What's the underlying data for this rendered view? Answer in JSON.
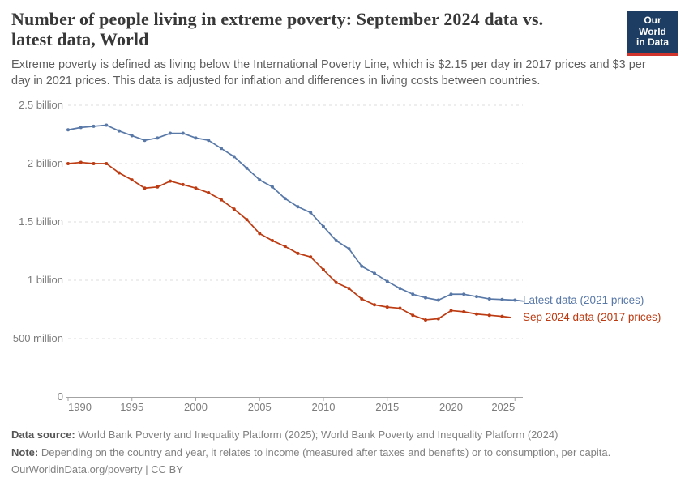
{
  "header": {
    "title_lines": [
      "Number of people living in extreme poverty: September 2024 data vs.",
      "latest data, World"
    ],
    "subtitle_lines": [
      "Extreme poverty is defined as living below the International Poverty Line, which is $2.15 per day in 2017 prices and $3 per",
      "day in 2021 prices. This data is adjusted for inflation and differences in living costs between countries."
    ]
  },
  "logo": {
    "line1": "Our World",
    "line2": "in Data",
    "bg_color": "#1d3d63",
    "bar_color": "#d0342c"
  },
  "chart_data": {
    "type": "line",
    "title": "Number of people living in extreme poverty: September 2024 data vs. latest data, World",
    "unit": "people",
    "value_scale": "billions",
    "xlim": [
      1990,
      2025
    ],
    "ylim": [
      0,
      2.5
    ],
    "grid": "horizontal dashed",
    "legend_position": "right of line ends",
    "xticks": [
      1990,
      1995,
      2000,
      2005,
      2010,
      2015,
      2020,
      2025
    ],
    "yticks": [
      {
        "value": 0,
        "label": "0"
      },
      {
        "value": 0.5,
        "label": "500 million"
      },
      {
        "value": 1,
        "label": "1 billion"
      },
      {
        "value": 1.5,
        "label": "1.5 billion"
      },
      {
        "value": 2,
        "label": "2 billion"
      },
      {
        "value": 2.5,
        "label": "2.5 billion"
      }
    ],
    "series": [
      {
        "name": "Latest data (2021 prices)",
        "color": "#5878a8",
        "start_year": 1990,
        "end_year": 2025,
        "values": [
          2.29,
          2.31,
          2.32,
          2.33,
          2.28,
          2.24,
          2.2,
          2.22,
          2.26,
          2.26,
          2.22,
          2.2,
          2.13,
          2.06,
          1.96,
          1.86,
          1.8,
          1.7,
          1.63,
          1.58,
          1.46,
          1.34,
          1.27,
          1.12,
          1.06,
          0.99,
          0.93,
          0.88,
          0.85,
          0.83,
          0.88,
          0.88,
          0.86,
          0.84,
          0.835,
          0.83
        ]
      },
      {
        "name": "Sep 2024 data (2017 prices)",
        "color": "#bd3b12",
        "start_year": 1990,
        "end_year": 2024,
        "values": [
          2.0,
          2.01,
          2.0,
          2.0,
          1.92,
          1.86,
          1.79,
          1.8,
          1.85,
          1.82,
          1.79,
          1.75,
          1.69,
          1.61,
          1.52,
          1.4,
          1.34,
          1.29,
          1.23,
          1.2,
          1.09,
          0.98,
          0.93,
          0.84,
          0.79,
          0.77,
          0.76,
          0.7,
          0.66,
          0.67,
          0.74,
          0.73,
          0.71,
          0.7,
          0.69
        ]
      }
    ]
  },
  "footer": {
    "data_source_label": "Data source:",
    "data_source_text": "World Bank Poverty and Inequality Platform (2025); World Bank Poverty and Inequality Platform (2024)",
    "note_label": "Note:",
    "note_text": "Depending on the country and year, it relates to income (measured after taxes and benefits) or to consumption, per capita.",
    "citation": "OurWorldinData.org/poverty | CC BY"
  }
}
